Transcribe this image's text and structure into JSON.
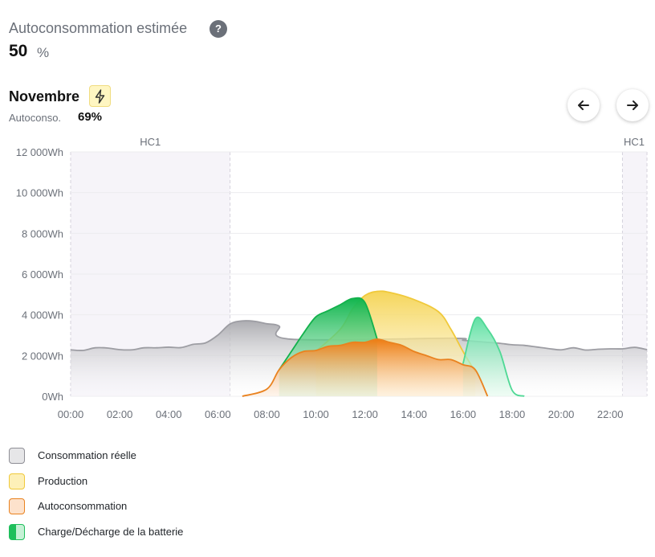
{
  "header": {
    "title": "Autoconsommation estimée",
    "help_glyph": "?",
    "value": "50",
    "unit": "%"
  },
  "period": {
    "month": "Novembre",
    "bolt_icon": "lightning-icon",
    "autoconso_label": "Autoconso.",
    "autoconso_value": "69%"
  },
  "navigation": {
    "prev_icon": "arrow-left-icon",
    "next_icon": "arrow-right-icon"
  },
  "chart_data": {
    "type": "area",
    "y_tick_labels": [
      "0Wh",
      "2 000Wh",
      "4 000Wh",
      "6 000Wh",
      "8 000Wh",
      "10 000Wh",
      "12 000Wh"
    ],
    "y_ticks": [
      0,
      2000,
      4000,
      6000,
      8000,
      10000,
      12000
    ],
    "ylim": [
      0,
      12000
    ],
    "x_tick_labels": [
      "00:00",
      "02:00",
      "04:00",
      "06:00",
      "08:00",
      "10:00",
      "12:00",
      "14:00",
      "16:00",
      "18:00",
      "20:00",
      "22:00"
    ],
    "x_ticks": [
      0,
      2,
      4,
      6,
      8,
      10,
      12,
      14,
      16,
      18,
      20,
      22
    ],
    "xlim": [
      0,
      23.5
    ],
    "grid": true,
    "off_peak_bands": [
      {
        "label": "HC1",
        "start": 0,
        "end": 6.5
      },
      {
        "label": "HC1",
        "start": 22.5,
        "end": 23.5
      }
    ],
    "series": [
      {
        "name": "Consommation réelle",
        "color": "#a8a8ad",
        "x": [
          0,
          0.5,
          1,
          1.5,
          2,
          2.5,
          3,
          3.5,
          4,
          4.5,
          5,
          5.5,
          6,
          6.5,
          7,
          7.5,
          8,
          8.5,
          9,
          15.5,
          16,
          16.5,
          17,
          17.5,
          18,
          18.5,
          19,
          19.5,
          20,
          20.5,
          21,
          21.5,
          22,
          22.5,
          23,
          23.5
        ],
        "values": [
          2280,
          2250,
          2380,
          2370,
          2290,
          2280,
          2380,
          2380,
          2410,
          2390,
          2550,
          2620,
          3000,
          3550,
          3700,
          3680,
          3560,
          3450,
          2800,
          2850,
          2750,
          2700,
          2650,
          2600,
          2530,
          2500,
          2420,
          2340,
          2280,
          2380,
          2270,
          2310,
          2330,
          2330,
          2400,
          2290
        ]
      },
      {
        "name": "Production",
        "color": "#f5d55a",
        "x": [
          10,
          11,
          11.5,
          12,
          12.5,
          13,
          14,
          15,
          15.5,
          16,
          16.5
        ],
        "values": [
          2200,
          3300,
          4300,
          4950,
          5150,
          5100,
          4750,
          4150,
          3300,
          2200,
          1200
        ]
      },
      {
        "name": "Autoconsommation",
        "color": "#ee8420",
        "x": [
          7,
          8,
          8.5,
          9,
          9.5,
          10,
          10.5,
          11,
          11.5,
          12,
          12.5,
          13,
          13.5,
          14,
          14.5,
          15,
          15.5,
          16,
          16.5,
          17
        ],
        "values": [
          0,
          350,
          1300,
          1900,
          2200,
          2250,
          2450,
          2500,
          2650,
          2650,
          2800,
          2650,
          2500,
          2200,
          2000,
          1800,
          1800,
          1550,
          1300,
          0
        ]
      },
      {
        "name": "Charge/Décharge de la batterie",
        "color": "#1fbf5c",
        "x": [
          8.5,
          9,
          9.5,
          10,
          10.5,
          11,
          11.5,
          12,
          12.5,
          16,
          16.5,
          17,
          17.5,
          18,
          18.5
        ],
        "values": [
          1300,
          2200,
          3100,
          3900,
          4200,
          4500,
          4800,
          4600,
          2800,
          1600,
          3800,
          3300,
          2200,
          300,
          0
        ]
      }
    ]
  },
  "legend": [
    {
      "label": "Consommation réelle",
      "fill": "#e6e6e8",
      "border": "#8e8e95"
    },
    {
      "label": "Production",
      "fill": "#fdf0b8",
      "border": "#f0c93b"
    },
    {
      "label": "Autoconsommation",
      "fill": "#fde2cc",
      "border": "#e9821f"
    },
    {
      "label": "Charge/Décharge de la batterie",
      "fill": "#c6f1d6",
      "border": "#1fbf5c"
    }
  ]
}
